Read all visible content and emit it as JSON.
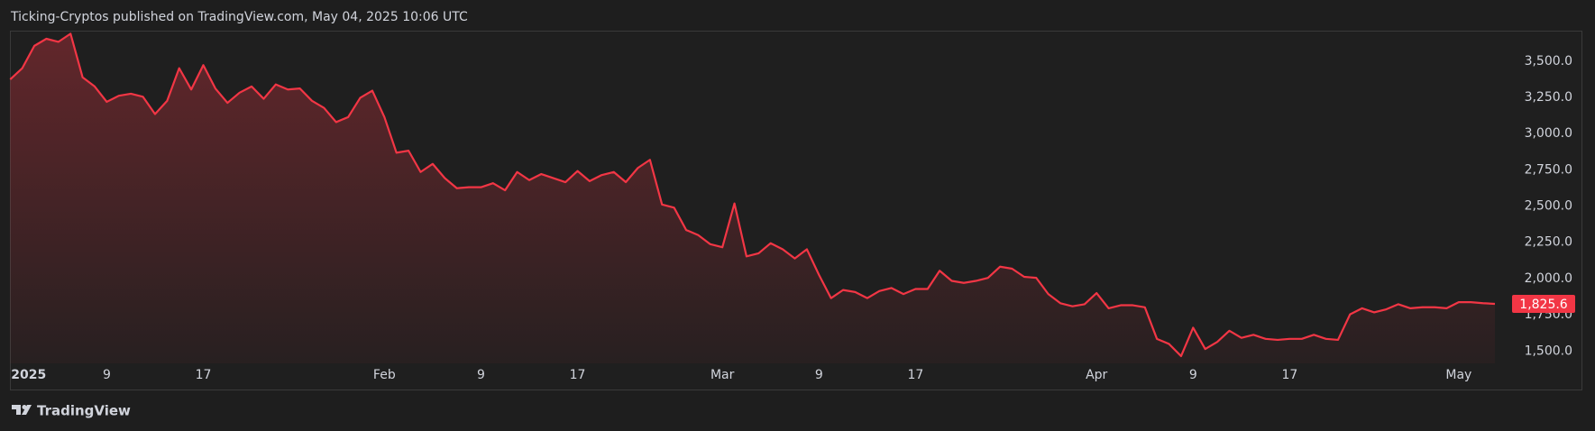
{
  "chart_data": {
    "type": "area",
    "title": "Ticking-Cryptos published on TradingView.com, May 04, 2025 10:06 UTC",
    "x": [
      "2025-01-01",
      "2025-01-02",
      "2025-01-03",
      "2025-01-04",
      "2025-01-05",
      "2025-01-06",
      "2025-01-07",
      "2025-01-08",
      "2025-01-09",
      "2025-01-10",
      "2025-01-11",
      "2025-01-12",
      "2025-01-13",
      "2025-01-14",
      "2025-01-15",
      "2025-01-16",
      "2025-01-17",
      "2025-01-18",
      "2025-01-19",
      "2025-01-20",
      "2025-01-21",
      "2025-01-22",
      "2025-01-23",
      "2025-01-24",
      "2025-01-25",
      "2025-01-26",
      "2025-01-27",
      "2025-01-28",
      "2025-01-29",
      "2025-01-30",
      "2025-01-31",
      "2025-02-01",
      "2025-02-02",
      "2025-02-03",
      "2025-02-04",
      "2025-02-05",
      "2025-02-06",
      "2025-02-07",
      "2025-02-08",
      "2025-02-09",
      "2025-02-10",
      "2025-02-11",
      "2025-02-12",
      "2025-02-13",
      "2025-02-14",
      "2025-02-15",
      "2025-02-16",
      "2025-02-17",
      "2025-02-18",
      "2025-02-19",
      "2025-02-20",
      "2025-02-21",
      "2025-02-22",
      "2025-02-23",
      "2025-02-24",
      "2025-02-25",
      "2025-02-26",
      "2025-02-27",
      "2025-02-28",
      "2025-03-01",
      "2025-03-02",
      "2025-03-03",
      "2025-03-04",
      "2025-03-05",
      "2025-03-06",
      "2025-03-07",
      "2025-03-08",
      "2025-03-09",
      "2025-03-10",
      "2025-03-11",
      "2025-03-12",
      "2025-03-13",
      "2025-03-14",
      "2025-03-15",
      "2025-03-16",
      "2025-03-17",
      "2025-03-18",
      "2025-03-19",
      "2025-03-20",
      "2025-03-21",
      "2025-03-22",
      "2025-03-23",
      "2025-03-24",
      "2025-03-25",
      "2025-03-26",
      "2025-03-27",
      "2025-03-28",
      "2025-03-29",
      "2025-03-30",
      "2025-03-31",
      "2025-04-01",
      "2025-04-02",
      "2025-04-03",
      "2025-04-04",
      "2025-04-05",
      "2025-04-06",
      "2025-04-07",
      "2025-04-08",
      "2025-04-09",
      "2025-04-10",
      "2025-04-11",
      "2025-04-12",
      "2025-04-13",
      "2025-04-14",
      "2025-04-15",
      "2025-04-16",
      "2025-04-17",
      "2025-04-18",
      "2025-04-19",
      "2025-04-20",
      "2025-04-21",
      "2025-04-22",
      "2025-04-23",
      "2025-04-24",
      "2025-04-25",
      "2025-04-26",
      "2025-04-27",
      "2025-04-28",
      "2025-04-29",
      "2025-04-30",
      "2025-05-01",
      "2025-05-02",
      "2025-05-03",
      "2025-05-04"
    ],
    "values": [
      3374,
      3451,
      3605,
      3654,
      3633,
      3689,
      3388,
      3325,
      3219,
      3261,
      3275,
      3254,
      3135,
      3226,
      3451,
      3304,
      3472,
      3311,
      3212,
      3282,
      3325,
      3240,
      3339,
      3304,
      3311,
      3226,
      3177,
      3079,
      3114,
      3247,
      3296,
      3114,
      2868,
      2882,
      2735,
      2791,
      2693,
      2623,
      2630,
      2630,
      2658,
      2609,
      2735,
      2679,
      2721,
      2693,
      2665,
      2742,
      2672,
      2714,
      2735,
      2665,
      2763,
      2819,
      2511,
      2489,
      2335,
      2300,
      2237,
      2216,
      2518,
      2153,
      2174,
      2244,
      2202,
      2139,
      2202,
      2026,
      1865,
      1921,
      1907,
      1865,
      1914,
      1935,
      1893,
      1928,
      1928,
      2054,
      1984,
      1970,
      1984,
      2005,
      2082,
      2068,
      2012,
      2005,
      1893,
      1830,
      1809,
      1823,
      1900,
      1795,
      1816,
      1816,
      1802,
      1584,
      1549,
      1465,
      1661,
      1514,
      1563,
      1640,
      1591,
      1612,
      1584,
      1577,
      1584,
      1584,
      1612,
      1584,
      1577,
      1753,
      1795,
      1767,
      1788,
      1823,
      1795,
      1802,
      1802,
      1795,
      1837,
      1837,
      1830,
      1825.6
    ],
    "color": "#f23645",
    "current_price": {
      "value": 1825.6,
      "label": "1,825.6"
    },
    "xlim": [
      "2025-01-01",
      "2025-05-04"
    ],
    "xticks": [
      {
        "value": "2025-01-01",
        "label": "2025"
      },
      {
        "value": "2025-01-09",
        "label": "9"
      },
      {
        "value": "2025-01-17",
        "label": "17"
      },
      {
        "value": "2025-02-01",
        "label": "Feb"
      },
      {
        "value": "2025-02-09",
        "label": "9"
      },
      {
        "value": "2025-02-17",
        "label": "17"
      },
      {
        "value": "2025-03-01",
        "label": "Mar"
      },
      {
        "value": "2025-03-09",
        "label": "9"
      },
      {
        "value": "2025-03-17",
        "label": "17"
      },
      {
        "value": "2025-04-01",
        "label": "Apr"
      },
      {
        "value": "2025-04-09",
        "label": "9"
      },
      {
        "value": "2025-04-17",
        "label": "17"
      },
      {
        "value": "2025-05-01",
        "label": "May"
      }
    ],
    "ylim": [
      1415,
      3710
    ],
    "yticks": [
      {
        "value": 1500,
        "label": "1,500.0"
      },
      {
        "value": 1750,
        "label": "1,750.0"
      },
      {
        "value": 2000,
        "label": "2,000.0"
      },
      {
        "value": 2250,
        "label": "2,250.0"
      },
      {
        "value": 2500,
        "label": "2,500.0"
      },
      {
        "value": 2750,
        "label": "2,750.0"
      },
      {
        "value": 3000,
        "label": "3,000.0"
      },
      {
        "value": 3250,
        "label": "3,250.0"
      },
      {
        "value": 3500,
        "label": "3,500.0"
      }
    ],
    "grid": false
  },
  "branding": "TradingView"
}
